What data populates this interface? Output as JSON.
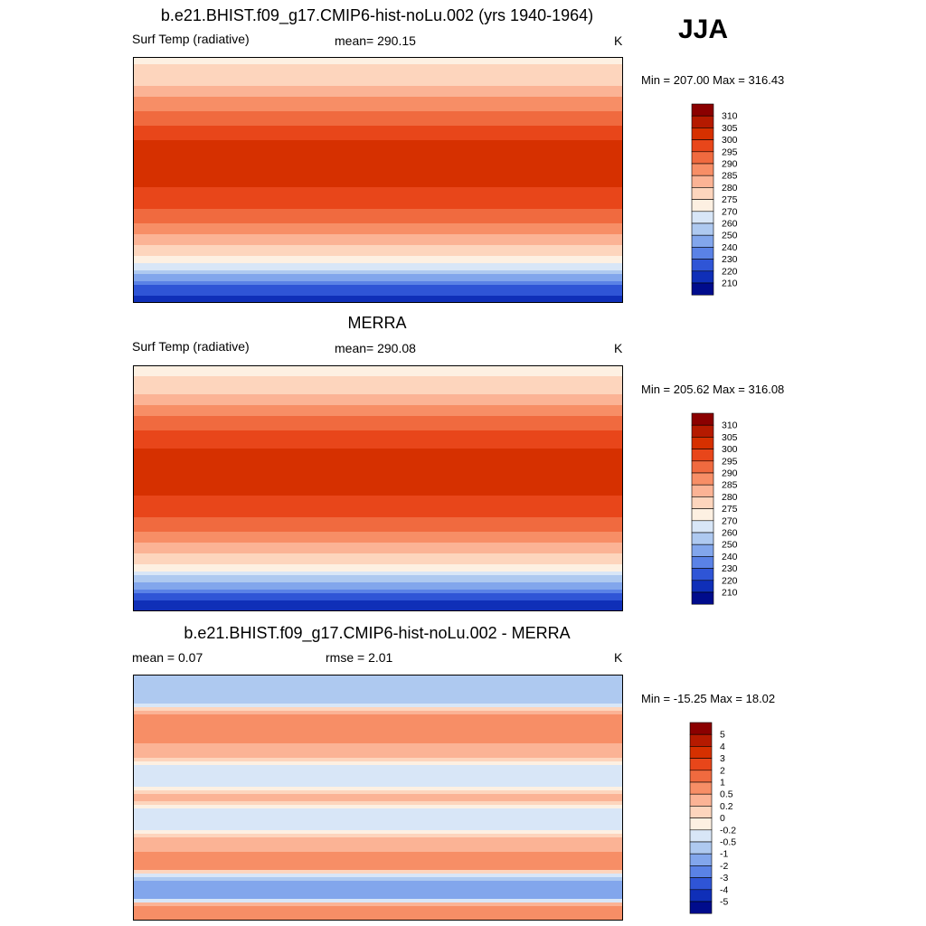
{
  "season": "JJA",
  "panels": [
    {
      "title": "b.e21.BHIST.f09_g17.CMIP6-hist-noLu.002 (yrs 1940-1964)",
      "left_label": "Surf Temp (radiative)",
      "center_label": "mean= 290.15",
      "units": "K",
      "minmax": "Min = 207.00 Max = 316.43"
    },
    {
      "title": "MERRA",
      "left_label": "Surf Temp (radiative)",
      "center_label": "mean= 290.08",
      "units": "K",
      "minmax": "Min = 205.62 Max = 316.08"
    },
    {
      "title": "b.e21.BHIST.f09_g17.CMIP6-hist-noLu.002 - MERRA",
      "left_label": "mean =   0.07",
      "center_label": "rmse =   2.01",
      "units": "K",
      "minmax": "Min = -15.25 Max =  18.02"
    }
  ],
  "colorbars": {
    "temperature": {
      "levels": [
        "310",
        "305",
        "300",
        "295",
        "290",
        "285",
        "280",
        "275",
        "270",
        "260",
        "250",
        "240",
        "230",
        "220",
        "210"
      ],
      "colors": [
        "#8b0000",
        "#b51a00",
        "#d63000",
        "#e8461a",
        "#f06a3f",
        "#f78e66",
        "#fbb395",
        "#fdd5bd",
        "#fdf0e2",
        "#d8e6f7",
        "#aec9f0",
        "#82a6ec",
        "#5a82e6",
        "#2f55d6",
        "#0f2fb8",
        "#000c8c"
      ]
    },
    "difference": {
      "levels": [
        "5",
        "4",
        "3",
        "2",
        "1",
        "0.5",
        "0.2",
        "0",
        "-0.2",
        "-0.5",
        "-1",
        "-2",
        "-3",
        "-4",
        "-5"
      ],
      "colors": [
        "#8b0000",
        "#b51a00",
        "#d63000",
        "#e8461a",
        "#f06a3f",
        "#f78e66",
        "#fbb395",
        "#fdd5bd",
        "#fdf0e2",
        "#d8e6f7",
        "#aec9f0",
        "#82a6ec",
        "#5a82e6",
        "#2f55d6",
        "#0f2fb8",
        "#000c8c"
      ]
    }
  },
  "chart_data": [
    {
      "type": "heatmap",
      "title": "b.e21.BHIST.f09_g17.CMIP6-hist-noLu.002 (yrs 1940-1964)",
      "variable": "Surf Temp (radiative)",
      "units": "K",
      "mean": 290.15,
      "min": 207.0,
      "max": 316.43,
      "projection": "global cylindrical equidistant",
      "zonal_profile": {
        "lat": [
          90,
          80,
          70,
          60,
          50,
          40,
          30,
          20,
          10,
          0,
          -10,
          -20,
          -30,
          -40,
          -50,
          -60,
          -70,
          -80,
          -90
        ],
        "value": [
          274,
          276,
          280,
          285,
          290,
          295,
          300,
          301,
          302,
          301,
          299,
          296,
          291,
          285,
          279,
          272,
          250,
          225,
          215
        ]
      }
    },
    {
      "type": "heatmap",
      "title": "MERRA",
      "variable": "Surf Temp (radiative)",
      "units": "K",
      "mean": 290.08,
      "min": 205.62,
      "max": 316.08,
      "projection": "global cylindrical equidistant",
      "zonal_profile": {
        "lat": [
          90,
          80,
          70,
          60,
          50,
          40,
          30,
          20,
          10,
          0,
          -10,
          -20,
          -30,
          -40,
          -50,
          -60,
          -70,
          -80,
          -90
        ],
        "value": [
          273,
          276,
          280,
          286,
          291,
          296,
          300,
          301,
          302,
          301,
          299,
          296,
          291,
          285,
          279,
          271,
          248,
          222,
          214
        ]
      }
    },
    {
      "type": "heatmap",
      "title": "b.e21.BHIST.f09_g17.CMIP6-hist-noLu.002 - MERRA",
      "units": "K",
      "mean": 0.07,
      "rmse": 2.01,
      "min": -15.25,
      "max": 18.02,
      "projection": "global cylindrical equidistant",
      "zonal_profile": {
        "lat": [
          90,
          80,
          70,
          60,
          50,
          40,
          30,
          20,
          10,
          0,
          -10,
          -20,
          -30,
          -40,
          -50,
          -60,
          -70,
          -80,
          -90
        ],
        "value": [
          -0.5,
          -1,
          -0.5,
          0.5,
          1,
          0.5,
          0.2,
          -0.5,
          -0.5,
          0.5,
          -0.5,
          -0.5,
          0.2,
          0.5,
          1,
          -1,
          -2,
          1,
          0.5
        ]
      }
    }
  ]
}
